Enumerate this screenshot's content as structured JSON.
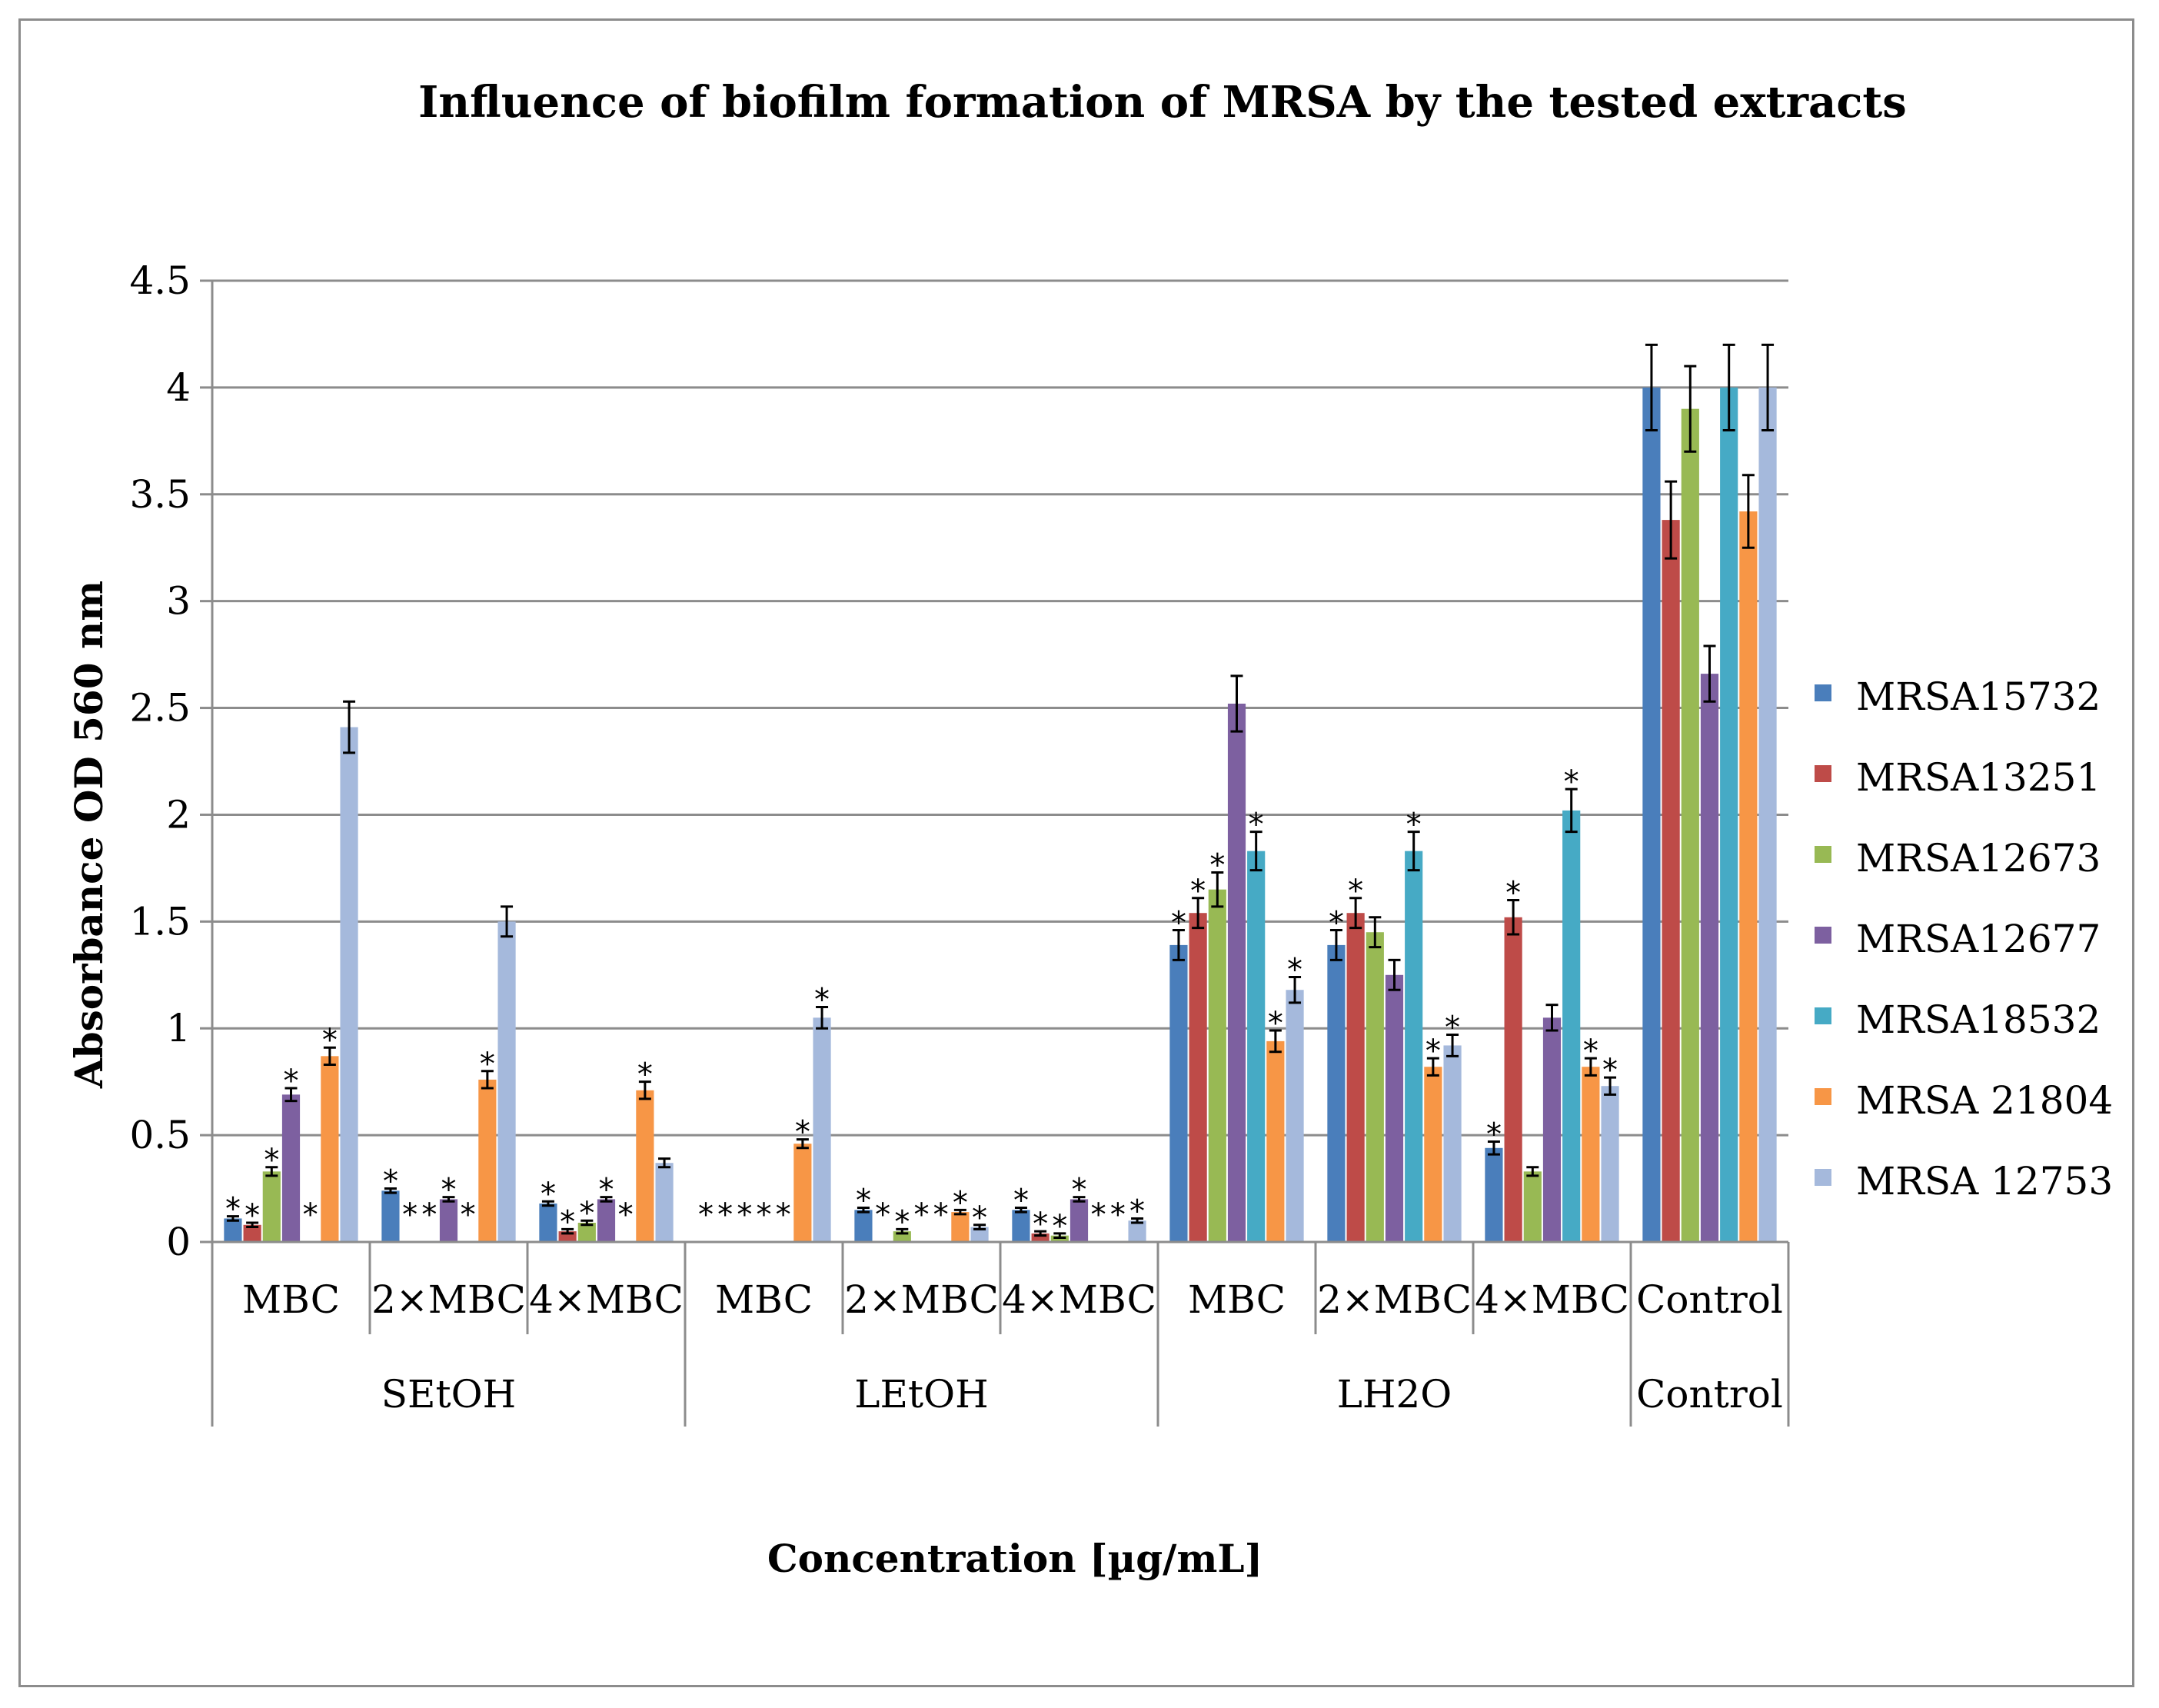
{
  "chart_data": {
    "type": "bar",
    "title": "Influence of biofilm formation of MRSA by the tested extracts",
    "xlabel": "Concentration [µg/mL]",
    "ylabel": "Absorbance  OD 560 nm",
    "ylim": [
      0,
      4.5
    ],
    "yticks": [
      "0",
      "0.5",
      "1",
      "1.5",
      "2",
      "2.5",
      "3",
      "3.5",
      "4",
      "4.5"
    ],
    "grid": true,
    "legend_position": "right",
    "groups": [
      {
        "label": "SEtOH",
        "categories": [
          "MBC",
          "2×MBC",
          "4×MBC"
        ]
      },
      {
        "label": "LEtOH",
        "categories": [
          "MBC",
          "2×MBC",
          "4×MBC"
        ]
      },
      {
        "label": "LH2O",
        "categories": [
          "MBC",
          "2×MBC",
          "4×MBC"
        ]
      },
      {
        "label": "",
        "categories": [
          "Control"
        ]
      }
    ],
    "series": [
      {
        "name": "MRSA15732",
        "color": "#4a7ebb",
        "values": [
          0.11,
          0.24,
          0.18,
          0,
          0.15,
          0.15,
          1.39,
          1.39,
          0.44,
          4.0
        ],
        "errors": [
          0.01,
          0.01,
          0.01,
          0,
          0.01,
          0.01,
          0.07,
          0.07,
          0.03,
          0.2
        ],
        "stars": [
          true,
          true,
          true,
          true,
          true,
          true,
          true,
          true,
          true,
          false
        ]
      },
      {
        "name": "MRSA13251",
        "color": "#be4b48",
        "values": [
          0.08,
          0,
          0.05,
          0,
          0,
          0.04,
          1.54,
          1.54,
          1.52,
          3.38
        ],
        "errors": [
          0.01,
          0,
          0.01,
          0,
          0,
          0.01,
          0.07,
          0.07,
          0.08,
          0.18
        ],
        "stars": [
          true,
          true,
          true,
          true,
          true,
          true,
          true,
          true,
          true,
          false
        ]
      },
      {
        "name": "MRSA12673",
        "color": "#98b954",
        "values": [
          0.33,
          0,
          0.09,
          0,
          0.05,
          0.03,
          1.65,
          1.45,
          0.33,
          3.9
        ],
        "errors": [
          0.02,
          0,
          0.01,
          0,
          0.01,
          0.01,
          0.08,
          0.07,
          0.02,
          0.2
        ],
        "stars": [
          true,
          true,
          true,
          true,
          true,
          true,
          true,
          false,
          false,
          false
        ]
      },
      {
        "name": "MRSA12677",
        "color": "#7d60a0",
        "values": [
          0.69,
          0.2,
          0.2,
          0,
          0,
          0.2,
          2.52,
          1.25,
          1.05,
          2.66
        ],
        "errors": [
          0.03,
          0.01,
          0.01,
          0,
          0,
          0.01,
          0.13,
          0.07,
          0.06,
          0.13
        ],
        "stars": [
          true,
          true,
          true,
          true,
          true,
          true,
          false,
          false,
          false,
          false
        ]
      },
      {
        "name": "MRSA18532",
        "color": "#46aac5",
        "values": [
          0,
          0,
          0,
          0,
          0,
          0,
          1.83,
          1.83,
          2.02,
          4.0
        ],
        "errors": [
          0,
          0,
          0,
          0,
          0,
          0,
          0.09,
          0.09,
          0.1,
          0.2
        ],
        "stars": [
          true,
          true,
          true,
          true,
          true,
          true,
          true,
          true,
          true,
          false
        ]
      },
      {
        "name": "MRSA 21804",
        "color": "#f79646",
        "values": [
          0.87,
          0.76,
          0.71,
          0.46,
          0.14,
          0,
          0.94,
          0.82,
          0.82,
          3.42
        ],
        "errors": [
          0.04,
          0.04,
          0.04,
          0.02,
          0.01,
          0,
          0.05,
          0.04,
          0.04,
          0.17
        ],
        "stars": [
          true,
          true,
          true,
          true,
          true,
          true,
          true,
          true,
          true,
          false
        ]
      },
      {
        "name": "MRSA 12753",
        "color": "#a5b9dc",
        "values": [
          2.41,
          1.5,
          0.37,
          1.05,
          0.07,
          0.1,
          1.18,
          0.92,
          0.73,
          4.0
        ],
        "errors": [
          0.12,
          0.07,
          0.02,
          0.05,
          0.01,
          0.01,
          0.06,
          0.05,
          0.04,
          0.2
        ],
        "stars": [
          false,
          false,
          false,
          true,
          true,
          true,
          true,
          true,
          true,
          false
        ]
      }
    ]
  }
}
